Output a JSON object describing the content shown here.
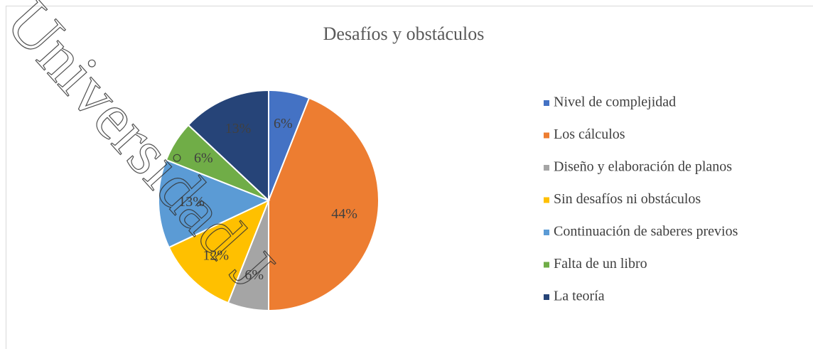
{
  "chart_data": {
    "type": "pie",
    "title": "Desafíos y obstáculos",
    "categories": [
      "Nivel de complejidad",
      "Los cálculos",
      "Diseño y elaboración de planos",
      "Sin desafíos ni obstáculos",
      "Continuación de saberes previos",
      "Falta de un libro",
      "La teoría"
    ],
    "values": [
      6,
      44,
      6,
      12,
      13,
      6,
      13
    ],
    "value_labels": [
      "6%",
      "44%",
      "6%",
      "12%",
      "13%",
      "6%",
      "13%"
    ],
    "colors": [
      "#4472c4",
      "#ed7d31",
      "#a5a5a5",
      "#ffc000",
      "#5b9bd5",
      "#70ad47",
      "#264478"
    ],
    "legend": "right"
  },
  "watermark": "Universidad J"
}
